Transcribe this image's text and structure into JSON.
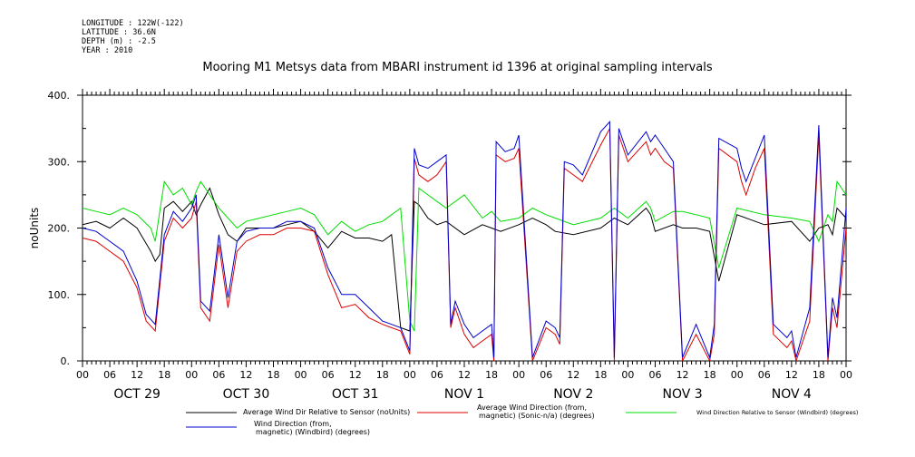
{
  "meta": {
    "longitude": "LONGITUDE : 122W(-122)",
    "latitude": "LATITUDE : 36.6N",
    "depth": "DEPTH (m) : -2.5",
    "year": "YEAR : 2010"
  },
  "chart_data": {
    "type": "line",
    "title": "Mooring M1 Metsys data from MBARI instrument id 1396 at original sampling intervals",
    "ylabel": "noUnits",
    "xlabel": "",
    "ylim": [
      0,
      400
    ],
    "xlim": [
      0,
      168
    ],
    "y_ticks": [
      "0.",
      "100.",
      "200.",
      "300.",
      "400."
    ],
    "y_tick_values": [
      0,
      100,
      200,
      300,
      400
    ],
    "hour_ticks": [
      "00",
      "06",
      "12",
      "18",
      "00",
      "06",
      "12",
      "18",
      "00",
      "06",
      "12",
      "18",
      "00",
      "06",
      "12",
      "18",
      "00",
      "06",
      "12",
      "18",
      "00",
      "06",
      "12",
      "18",
      "00",
      "06",
      "12",
      "18",
      "00"
    ],
    "day_labels": [
      "OCT 29",
      "OCT 30",
      "OCT 31",
      "NOV  1",
      "NOV  2",
      "NOV  3",
      "NOV  4"
    ],
    "x_unit": "hours since 00:00 OCT 29 2010",
    "series": [
      {
        "name": "Average Wind Dir Relative to Sensor (noUnits)",
        "color": "#000000",
        "x": [
          0,
          3,
          6,
          9,
          12,
          15,
          16,
          17,
          18,
          20,
          22,
          24,
          25,
          26,
          28,
          30,
          32,
          34,
          36,
          39,
          42,
          45,
          48,
          51,
          54,
          57,
          60,
          63,
          66,
          68,
          70,
          72,
          73,
          74,
          76,
          78,
          80,
          84,
          88,
          90,
          92,
          96,
          99,
          102,
          104,
          108,
          114,
          117,
          120,
          124,
          125,
          126,
          130,
          132,
          135,
          138,
          140,
          144,
          150,
          156,
          160,
          162,
          164,
          165,
          166,
          168
        ],
        "values": [
          205,
          210,
          200,
          215,
          200,
          165,
          150,
          160,
          230,
          240,
          225,
          240,
          220,
          235,
          260,
          220,
          190,
          180,
          200,
          200,
          200,
          205,
          210,
          195,
          170,
          195,
          185,
          185,
          180,
          190,
          50,
          45,
          240,
          235,
          215,
          205,
          210,
          190,
          205,
          200,
          195,
          205,
          215,
          205,
          195,
          190,
          200,
          215,
          205,
          230,
          220,
          195,
          205,
          200,
          200,
          195,
          120,
          220,
          205,
          210,
          180,
          200,
          205,
          190,
          230,
          215
        ]
      },
      {
        "name": "Average Wind Direction (from, magnetic) (Sonic-n/a) (degrees)",
        "color": "#dd0000",
        "x": [
          0,
          3,
          6,
          9,
          12,
          14,
          16,
          18,
          20,
          22,
          24,
          25,
          26,
          28,
          30,
          32,
          34,
          36,
          39,
          42,
          45,
          48,
          51,
          54,
          57,
          60,
          63,
          66,
          68,
          70,
          72,
          73,
          74,
          76,
          78,
          80,
          81,
          82,
          84,
          86,
          88,
          90,
          90.5,
          91,
          93,
          95,
          96,
          99,
          102,
          104,
          105,
          106,
          108,
          110,
          114,
          116,
          117,
          118,
          120,
          124,
          125,
          126,
          128,
          130,
          132,
          135,
          138,
          139,
          140,
          144,
          145,
          146,
          148,
          150,
          152,
          155,
          156,
          157,
          160,
          162,
          164,
          165,
          166,
          168
        ],
        "values": [
          185,
          180,
          165,
          150,
          110,
          60,
          45,
          180,
          215,
          200,
          215,
          240,
          80,
          60,
          175,
          80,
          165,
          180,
          190,
          190,
          200,
          200,
          195,
          130,
          80,
          85,
          65,
          55,
          50,
          45,
          10,
          305,
          280,
          270,
          280,
          300,
          50,
          80,
          40,
          20,
          30,
          40,
          0,
          310,
          300,
          305,
          320,
          0,
          50,
          40,
          25,
          290,
          280,
          270,
          325,
          350,
          0,
          340,
          300,
          330,
          310,
          320,
          300,
          290,
          0,
          40,
          0,
          40,
          320,
          300,
          270,
          250,
          290,
          320,
          40,
          20,
          30,
          0,
          60,
          340,
          0,
          80,
          50,
          200
        ]
      },
      {
        "name": "Wind Direction Relative to Sensor (Windbird) (degrees)",
        "color": "#00dd00",
        "x": [
          0,
          3,
          6,
          9,
          12,
          15,
          16,
          18,
          20,
          22,
          24,
          25,
          26,
          28,
          30,
          32,
          34,
          36,
          39,
          42,
          45,
          48,
          51,
          54,
          57,
          60,
          63,
          66,
          68,
          70,
          72,
          73,
          74,
          76,
          78,
          80,
          84,
          88,
          90,
          92,
          96,
          99,
          102,
          104,
          108,
          114,
          117,
          120,
          124,
          125,
          126,
          130,
          132,
          135,
          138,
          140,
          144,
          150,
          156,
          160,
          162,
          164,
          165,
          166,
          168
        ],
        "values": [
          230,
          225,
          220,
          230,
          220,
          200,
          180,
          270,
          250,
          260,
          235,
          255,
          270,
          250,
          230,
          215,
          200,
          210,
          215,
          220,
          225,
          230,
          220,
          190,
          210,
          195,
          205,
          210,
          220,
          230,
          60,
          45,
          260,
          250,
          240,
          230,
          250,
          215,
          225,
          210,
          215,
          230,
          220,
          215,
          205,
          215,
          230,
          215,
          240,
          230,
          210,
          225,
          225,
          220,
          215,
          140,
          230,
          220,
          215,
          210,
          180,
          220,
          210,
          270,
          250
        ]
      },
      {
        "name": "Wind Direction (from, magnetic) (Windbird) (degrees)",
        "color": "#0000cc",
        "x": [
          0,
          3,
          6,
          9,
          12,
          14,
          16,
          18,
          20,
          22,
          24,
          25,
          26,
          28,
          30,
          32,
          34,
          36,
          39,
          42,
          45,
          48,
          51,
          54,
          57,
          60,
          63,
          66,
          68,
          70,
          72,
          73,
          74,
          76,
          78,
          80,
          81,
          82,
          84,
          86,
          88,
          90,
          90.5,
          91,
          93,
          95,
          96,
          99,
          102,
          104,
          105,
          106,
          108,
          110,
          114,
          116,
          117,
          118,
          120,
          124,
          125,
          126,
          128,
          130,
          132,
          135,
          138,
          139,
          140,
          144,
          145,
          146,
          148,
          150,
          152,
          155,
          156,
          157,
          160,
          162,
          164,
          165,
          166,
          168
        ],
        "values": [
          200,
          195,
          180,
          165,
          120,
          70,
          55,
          190,
          225,
          210,
          230,
          250,
          90,
          75,
          190,
          95,
          180,
          195,
          200,
          200,
          210,
          210,
          200,
          140,
          100,
          100,
          80,
          60,
          55,
          50,
          15,
          320,
          295,
          290,
          300,
          310,
          55,
          90,
          55,
          35,
          45,
          55,
          5,
          330,
          315,
          320,
          340,
          5,
          60,
          50,
          35,
          300,
          295,
          280,
          345,
          360,
          5,
          350,
          310,
          345,
          330,
          340,
          320,
          300,
          5,
          55,
          5,
          55,
          335,
          320,
          290,
          270,
          305,
          340,
          55,
          35,
          45,
          5,
          80,
          355,
          5,
          95,
          65,
          230
        ]
      }
    ],
    "legend": [
      {
        "label": "Average Wind Dir Relative to Sensor (noUnits)",
        "color": "#000000"
      },
      {
        "label": "Average Wind Direction (from, magnetic) (Sonic-n/a) (degrees)",
        "color": "#dd0000"
      },
      {
        "label": "Wind Direction Relative to Sensor (Windbird) (degrees)",
        "color": "#00dd00"
      },
      {
        "label": "Wind Direction (from, magnetic) (Windbird) (degrees)",
        "color": "#0000cc"
      }
    ],
    "legend_placement": "bottom",
    "grid": false
  }
}
